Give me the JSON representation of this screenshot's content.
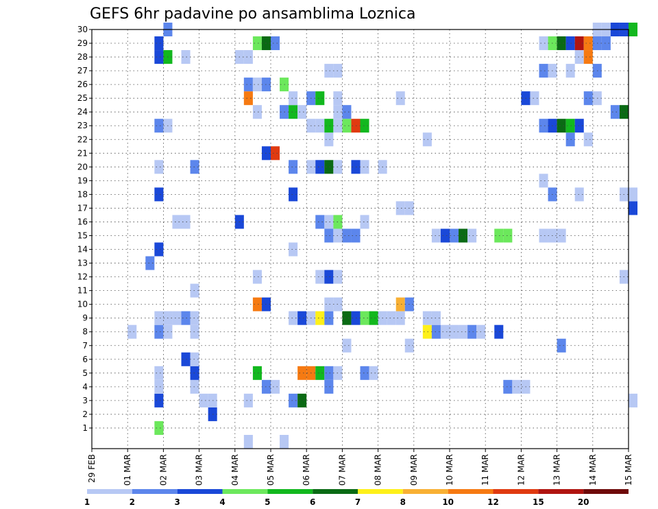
{
  "chart_data": {
    "type": "heatmap",
    "title": "GEFS 6hr padavine po ansamblima Loznica",
    "xlabel": "",
    "ylabel": "",
    "x_ticks": [
      "29 FEB",
      "01 MAR",
      "02 MAR",
      "03 MAR",
      "04 MAR",
      "05 MAR",
      "06 MAR",
      "07 MAR",
      "08 MAR",
      "09 MAR",
      "10 MAR",
      "11 MAR",
      "12 MAR",
      "13 MAR",
      "14 MAR",
      "15 MAR"
    ],
    "x_unit": "6-hour step from 29 FEB 00Z",
    "y_ticks": [
      1,
      2,
      3,
      4,
      5,
      6,
      7,
      8,
      9,
      10,
      11,
      12,
      13,
      14,
      15,
      16,
      17,
      18,
      19,
      20,
      21,
      22,
      23,
      24,
      25,
      26,
      27,
      28,
      29,
      30
    ],
    "ylim": [
      0,
      30
    ],
    "grid": true,
    "legend": "bottom",
    "colorbar": {
      "labels": [
        "1",
        "2",
        "3",
        "4",
        "5",
        "6",
        "7",
        "8",
        "10",
        "12",
        "15",
        "20"
      ],
      "colors": [
        "#b7c8f4",
        "#5c86ec",
        "#1a48d8",
        "#6ce85c",
        "#12b81e",
        "#0a6a14",
        "#fef01a",
        "#f8b034",
        "#f67a12",
        "#e03a10",
        "#b01410",
        "#6e0a0a"
      ]
    },
    "cells": [
      [
        1,
        7,
        4
      ],
      [
        2,
        13,
        3
      ],
      [
        3,
        7,
        3
      ],
      [
        3,
        12,
        1
      ],
      [
        3,
        13,
        1
      ],
      [
        3,
        17,
        1
      ],
      [
        3,
        22,
        2
      ],
      [
        3,
        23,
        6
      ],
      [
        3,
        60,
        1
      ],
      [
        4,
        7,
        1
      ],
      [
        4,
        11,
        1
      ],
      [
        4,
        19,
        2
      ],
      [
        4,
        26,
        2
      ],
      [
        4,
        20,
        1
      ],
      [
        4,
        46,
        2
      ],
      [
        4,
        47,
        1
      ],
      [
        4,
        48,
        1
      ],
      [
        5,
        7,
        1
      ],
      [
        5,
        11,
        3
      ],
      [
        5,
        18,
        5
      ],
      [
        5,
        23,
        9
      ],
      [
        5,
        24,
        9
      ],
      [
        5,
        25,
        5
      ],
      [
        5,
        26,
        2
      ],
      [
        5,
        27,
        1
      ],
      [
        5,
        30,
        2
      ],
      [
        5,
        31,
        1
      ],
      [
        6,
        10,
        3
      ],
      [
        6,
        11,
        1
      ],
      [
        7,
        28,
        1
      ],
      [
        7,
        35,
        1
      ],
      [
        7,
        52,
        2
      ],
      [
        8,
        4,
        1
      ],
      [
        8,
        7,
        2
      ],
      [
        8,
        8,
        1
      ],
      [
        8,
        11,
        1
      ],
      [
        8,
        37,
        7
      ],
      [
        8,
        38,
        2
      ],
      [
        8,
        39,
        1
      ],
      [
        8,
        40,
        1
      ],
      [
        8,
        41,
        1
      ],
      [
        8,
        42,
        2
      ],
      [
        8,
        43,
        1
      ],
      [
        8,
        45,
        3
      ],
      [
        9,
        7,
        1
      ],
      [
        9,
        8,
        1
      ],
      [
        9,
        9,
        1
      ],
      [
        9,
        10,
        2
      ],
      [
        9,
        11,
        1
      ],
      [
        9,
        22,
        1
      ],
      [
        9,
        23,
        3
      ],
      [
        9,
        24,
        1
      ],
      [
        9,
        25,
        7
      ],
      [
        9,
        26,
        2
      ],
      [
        9,
        28,
        6
      ],
      [
        9,
        29,
        3
      ],
      [
        9,
        30,
        4
      ],
      [
        9,
        31,
        5
      ],
      [
        9,
        32,
        1
      ],
      [
        9,
        33,
        1
      ],
      [
        9,
        34,
        1
      ],
      [
        9,
        37,
        1
      ],
      [
        9,
        38,
        1
      ],
      [
        10,
        18,
        9
      ],
      [
        10,
        19,
        3
      ],
      [
        10,
        26,
        1
      ],
      [
        10,
        27,
        1
      ],
      [
        10,
        34,
        8
      ],
      [
        10,
        35,
        2
      ],
      [
        11,
        11,
        1
      ],
      [
        12,
        18,
        1
      ],
      [
        12,
        25,
        1
      ],
      [
        12,
        26,
        3
      ],
      [
        12,
        27,
        1
      ],
      [
        12,
        59,
        1
      ],
      [
        13,
        6,
        2
      ],
      [
        14,
        7,
        3
      ],
      [
        14,
        22,
        1
      ],
      [
        15,
        26,
        2
      ],
      [
        15,
        27,
        1
      ],
      [
        15,
        28,
        2
      ],
      [
        15,
        29,
        2
      ],
      [
        15,
        38,
        1
      ],
      [
        15,
        39,
        3
      ],
      [
        15,
        40,
        2
      ],
      [
        15,
        41,
        6
      ],
      [
        15,
        42,
        1
      ],
      [
        15,
        45,
        4
      ],
      [
        15,
        46,
        4
      ],
      [
        15,
        50,
        1
      ],
      [
        15,
        51,
        1
      ],
      [
        15,
        52,
        1
      ],
      [
        16,
        9,
        1
      ],
      [
        16,
        10,
        1
      ],
      [
        16,
        16,
        3
      ],
      [
        16,
        25,
        2
      ],
      [
        16,
        26,
        1
      ],
      [
        16,
        27,
        4
      ],
      [
        16,
        30,
        1
      ],
      [
        17,
        34,
        1
      ],
      [
        17,
        35,
        1
      ],
      [
        17,
        60,
        3
      ],
      [
        18,
        7,
        3
      ],
      [
        18,
        22,
        3
      ],
      [
        18,
        51,
        2
      ],
      [
        18,
        54,
        1
      ],
      [
        18,
        59,
        1
      ],
      [
        18,
        60,
        1
      ],
      [
        19,
        50,
        1
      ],
      [
        20,
        7,
        1
      ],
      [
        20,
        11,
        2
      ],
      [
        20,
        22,
        2
      ],
      [
        20,
        24,
        1
      ],
      [
        20,
        25,
        3
      ],
      [
        20,
        26,
        6
      ],
      [
        20,
        27,
        1
      ],
      [
        20,
        29,
        3
      ],
      [
        20,
        30,
        1
      ],
      [
        20,
        32,
        1
      ],
      [
        21,
        19,
        3
      ],
      [
        21,
        20,
        10
      ],
      [
        22,
        26,
        1
      ],
      [
        22,
        37,
        1
      ],
      [
        22,
        53,
        2
      ],
      [
        22,
        55,
        1
      ],
      [
        23,
        7,
        2
      ],
      [
        23,
        8,
        1
      ],
      [
        23,
        24,
        1
      ],
      [
        23,
        25,
        1
      ],
      [
        23,
        26,
        5
      ],
      [
        23,
        27,
        1
      ],
      [
        23,
        28,
        4
      ],
      [
        23,
        29,
        10
      ],
      [
        23,
        30,
        5
      ],
      [
        23,
        50,
        2
      ],
      [
        23,
        51,
        3
      ],
      [
        23,
        52,
        6
      ],
      [
        23,
        53,
        5
      ],
      [
        23,
        54,
        3
      ],
      [
        24,
        18,
        1
      ],
      [
        24,
        21,
        2
      ],
      [
        24,
        22,
        5
      ],
      [
        24,
        23,
        1
      ],
      [
        24,
        27,
        1
      ],
      [
        24,
        28,
        2
      ],
      [
        24,
        58,
        2
      ],
      [
        24,
        59,
        6
      ],
      [
        25,
        17,
        9
      ],
      [
        25,
        22,
        1
      ],
      [
        25,
        24,
        2
      ],
      [
        25,
        25,
        5
      ],
      [
        25,
        27,
        1
      ],
      [
        25,
        34,
        1
      ],
      [
        25,
        48,
        3
      ],
      [
        25,
        49,
        1
      ],
      [
        25,
        55,
        2
      ],
      [
        25,
        56,
        1
      ],
      [
        26,
        17,
        2
      ],
      [
        26,
        18,
        1
      ],
      [
        26,
        19,
        2
      ],
      [
        26,
        21,
        4
      ],
      [
        27,
        26,
        1
      ],
      [
        27,
        27,
        1
      ],
      [
        27,
        50,
        2
      ],
      [
        27,
        51,
        1
      ],
      [
        27,
        53,
        1
      ],
      [
        27,
        56,
        2
      ],
      [
        28,
        7,
        3
      ],
      [
        28,
        8,
        5
      ],
      [
        28,
        10,
        1
      ],
      [
        28,
        16,
        1
      ],
      [
        28,
        17,
        1
      ],
      [
        28,
        54,
        1
      ],
      [
        28,
        55,
        9
      ],
      [
        29,
        7,
        3
      ],
      [
        29,
        18,
        4
      ],
      [
        29,
        19,
        6
      ],
      [
        29,
        20,
        2
      ],
      [
        29,
        50,
        1
      ],
      [
        29,
        51,
        4
      ],
      [
        29,
        52,
        6
      ],
      [
        29,
        53,
        3
      ],
      [
        29,
        54,
        11
      ],
      [
        29,
        55,
        9
      ],
      [
        29,
        56,
        2
      ],
      [
        29,
        57,
        2
      ],
      [
        30,
        8,
        2
      ],
      [
        30,
        56,
        1
      ],
      [
        30,
        57,
        1
      ],
      [
        30,
        58,
        3
      ],
      [
        30,
        59,
        3
      ],
      [
        30,
        60,
        5
      ],
      [
        0,
        17,
        1
      ],
      [
        0,
        21,
        1
      ]
    ]
  }
}
